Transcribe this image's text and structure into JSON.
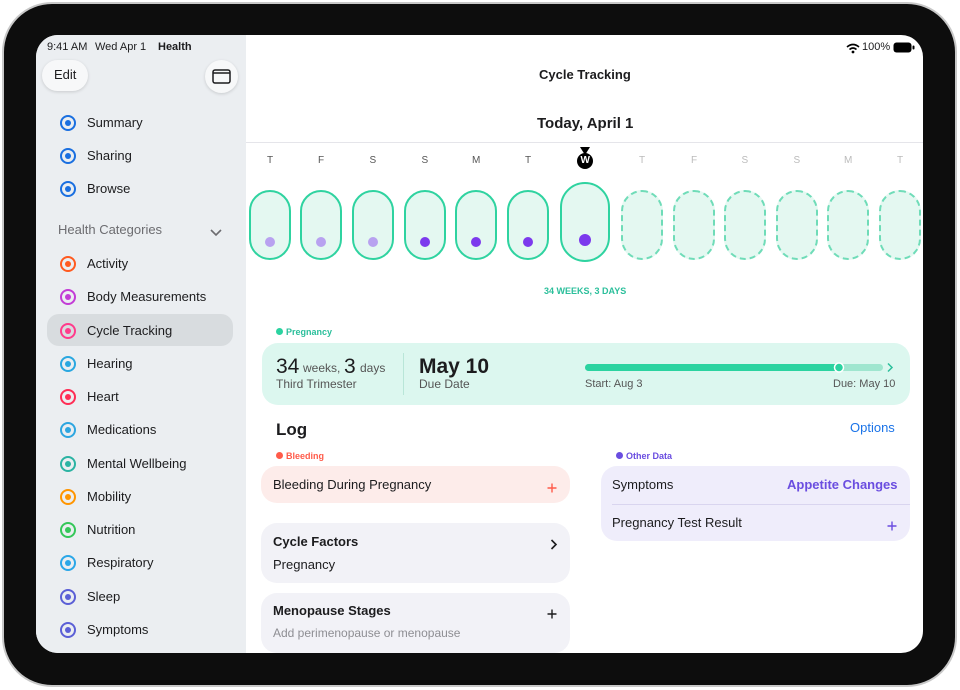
{
  "status_bar": {
    "time": "9:41 AM",
    "date": "Wed Apr 1",
    "app": "Health",
    "battery": "100%"
  },
  "sidebar": {
    "edit": "Edit",
    "items": [
      "Summary",
      "Sharing",
      "Browse"
    ],
    "section": "Health Categories",
    "categories": [
      "Activity",
      "Body Measurements",
      "Cycle Tracking",
      "Hearing",
      "Heart",
      "Medications",
      "Mental Wellbeing",
      "Mobility",
      "Nutrition",
      "Respiratory",
      "Sleep",
      "Symptoms"
    ]
  },
  "main": {
    "title": "Cycle Tracking",
    "date": "Today, April 1",
    "days": [
      "T",
      "F",
      "S",
      "S",
      "M",
      "T",
      "W",
      "T",
      "F",
      "S",
      "S",
      "M",
      "T"
    ],
    "duration": "34 WEEKS, 3 DAYS",
    "pregnancy": {
      "label": "Pregnancy",
      "weeks": "34",
      "weeks_unit": "weeks,",
      "days": "3",
      "days_unit": "days",
      "trimester": "Third Trimester",
      "due": "May 10",
      "due_label": "Due Date",
      "start": "Start: Aug 3",
      "end": "Due: May 10"
    },
    "log": {
      "title": "Log",
      "options": "Options",
      "bleeding": {
        "label": "Bleeding",
        "item": "Bleeding During Pregnancy"
      },
      "cycle_factors": {
        "title": "Cycle Factors",
        "value": "Pregnancy"
      },
      "menopause": {
        "title": "Menopause Stages",
        "hint": "Add perimenopause or menopause"
      },
      "other": {
        "label": "Other Data",
        "symptoms": "Symptoms",
        "symptoms_value": "Appetite Changes",
        "test": "Pregnancy Test Result"
      }
    }
  }
}
